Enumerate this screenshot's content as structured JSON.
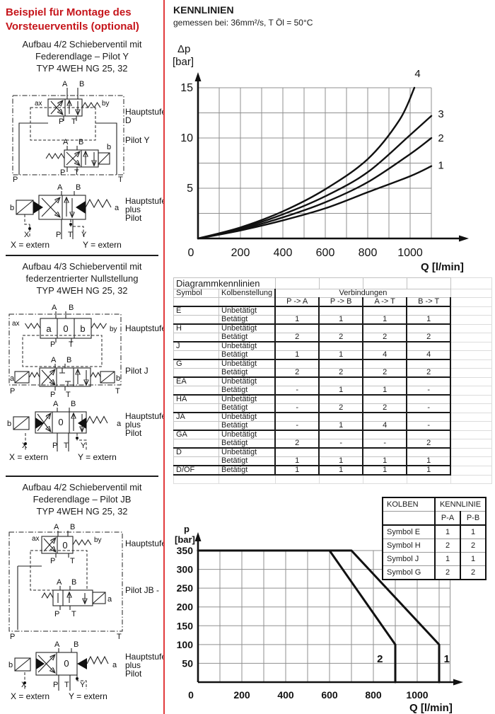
{
  "page": {
    "bg": "#ffffff",
    "divider_color": "#e23a3c",
    "accent_red": "#c6151b",
    "ink": "#1a1a1a",
    "grid_color": "#8f8f8f"
  },
  "left": {
    "title": "Beispiel für Montage des Vorsteuerventils (optional)",
    "s1_heading": [
      "Aufbau 4/2 Schieberventil mit",
      "Federendlage – Pilot Y",
      "TYP 4WEH NG 25, 32"
    ],
    "s2_heading": [
      "Aufbau 4/3 Schieberventil mit",
      "federzentrierter Nullstellung",
      "TYP 4WEH NG 25, 32"
    ],
    "s3_heading": [
      "Aufbau 4/2 Schieberventil mit",
      "Federendlage – Pilot JB",
      "TYP 4WEH NG 25, 32"
    ]
  },
  "ports": {
    "A": "A",
    "B": "B",
    "P": "P",
    "T": "T",
    "X": "X",
    "Y": "Y",
    "a": "a",
    "b": "b",
    "zero": "0",
    "ax": "ax",
    "by": "by"
  },
  "labels": {
    "haupt": "Hauptstufe",
    "hauptD": "D",
    "pilotY": "Pilot Y",
    "pilotJ": "Pilot J",
    "pilotJB": "Pilot JB -",
    "plus": "plus",
    "pilot": "Pilot",
    "xext": "X = extern",
    "yext": "Y = extern"
  },
  "kennlinien": {
    "title": "KENNLINIEN",
    "subtitle": "gemessen bei: 36mm²/s, T Öl = 50°C"
  },
  "chart_data": [
    {
      "type": "line",
      "title": "KENNLINIEN",
      "subtitle": "gemessen bei: 36mm²/s, T Öl = 50°C",
      "xlabel": "Q [l/min]",
      "ylabel1": "Δp",
      "ylabel2": "[bar]",
      "xlim": [
        0,
        1100
      ],
      "ylim": [
        0,
        15
      ],
      "xticks": [
        0,
        200,
        400,
        600,
        800,
        1000
      ],
      "yticks": [
        5,
        10,
        15
      ],
      "grid_x_step": 100,
      "grid_y_step": 2.5,
      "grid": true,
      "series": [
        {
          "name": "1",
          "points": [
            [
              0,
              0
            ],
            [
              200,
              0.8
            ],
            [
              400,
              1.8
            ],
            [
              600,
              3.0
            ],
            [
              800,
              4.6
            ],
            [
              1000,
              6.2
            ],
            [
              1100,
              7.2
            ]
          ]
        },
        {
          "name": "2",
          "points": [
            [
              0,
              0
            ],
            [
              200,
              0.9
            ],
            [
              400,
              2.1
            ],
            [
              600,
              3.6
            ],
            [
              800,
              5.6
            ],
            [
              1000,
              8.4
            ],
            [
              1100,
              10.0
            ]
          ]
        },
        {
          "name": "3",
          "points": [
            [
              0,
              0
            ],
            [
              200,
              1.0
            ],
            [
              400,
              2.4
            ],
            [
              600,
              4.2
            ],
            [
              800,
              6.6
            ],
            [
              1000,
              10.3
            ],
            [
              1100,
              12.2
            ]
          ]
        },
        {
          "name": "4",
          "points": [
            [
              0,
              0
            ],
            [
              200,
              1.1
            ],
            [
              400,
              2.7
            ],
            [
              600,
              4.9
            ],
            [
              800,
              7.9
            ],
            [
              950,
              11.8
            ],
            [
              1020,
              15.0
            ]
          ]
        }
      ],
      "series_labels": [
        {
          "text": "4",
          "x": 1035,
          "y": 16.4
        },
        {
          "text": "3",
          "x": 1145,
          "y": 12.4
        },
        {
          "text": "2",
          "x": 1145,
          "y": 10.0
        },
        {
          "text": "1",
          "x": 1145,
          "y": 7.3
        }
      ]
    },
    {
      "type": "line",
      "xlabel": "Q [l/min]",
      "ylabel1": "p",
      "ylabel2": "[bar]",
      "xlim": [
        0,
        1150
      ],
      "ylim": [
        0,
        350
      ],
      "xticks": [
        0,
        200,
        400,
        600,
        800,
        1000
      ],
      "yticks": [
        50,
        100,
        150,
        200,
        250,
        300,
        350
      ],
      "grid_x_step": 100,
      "grid_y_step": 50,
      "grid": true,
      "series": [
        {
          "name": "1",
          "points": [
            [
              0,
              350
            ],
            [
              700,
              350
            ],
            [
              1100,
              100
            ],
            [
              1100,
              0
            ]
          ]
        },
        {
          "name": "2",
          "points": [
            [
              0,
              350
            ],
            [
              600,
              350
            ],
            [
              900,
              100
            ],
            [
              900,
              0
            ]
          ]
        }
      ],
      "series_labels": [
        {
          "text": "2",
          "x": 830,
          "y": 62
        },
        {
          "text": "1",
          "x": 1135,
          "y": 62
        }
      ]
    }
  ],
  "table1": {
    "title": "Diagrammkennlinien",
    "col_symbol": "Symbol",
    "col_kolben": "Kolbenstellung",
    "col_verb": "Verbindungen",
    "value_cols": [
      "P -> A",
      "P -> B",
      "A -> T",
      "B -> T"
    ],
    "groups": [
      {
        "symbol": "E",
        "rows": [
          {
            "state": "Unbetätigt",
            "vals": [
              "",
              "",
              "",
              ""
            ]
          },
          {
            "state": "Betätigt",
            "vals": [
              "1",
              "1",
              "1",
              "1"
            ]
          }
        ]
      },
      {
        "symbol": "H",
        "rows": [
          {
            "state": "Unbetätigt",
            "vals": [
              "",
              "",
              "",
              ""
            ]
          },
          {
            "state": "Betätigt",
            "vals": [
              "2",
              "2",
              "2",
              "2"
            ]
          }
        ]
      },
      {
        "symbol": "J",
        "rows": [
          {
            "state": "Unbetätigt",
            "vals": [
              "",
              "",
              "",
              ""
            ]
          },
          {
            "state": "Betätigt",
            "vals": [
              "1",
              "1",
              "4",
              "4"
            ]
          }
        ]
      },
      {
        "symbol": "G",
        "rows": [
          {
            "state": "Unbetätigt",
            "vals": [
              "",
              "",
              "",
              ""
            ]
          },
          {
            "state": "Betätigt",
            "vals": [
              "2",
              "2",
              "2",
              "2"
            ]
          }
        ]
      },
      {
        "symbol": "EA",
        "rows": [
          {
            "state": "Unbetätigt",
            "vals": [
              "",
              "",
              "",
              ""
            ]
          },
          {
            "state": "Betätigt",
            "vals": [
              "-",
              "1",
              "1",
              "-"
            ]
          }
        ]
      },
      {
        "symbol": "HA",
        "rows": [
          {
            "state": "Unbetätigt",
            "vals": [
              "",
              "",
              "",
              ""
            ]
          },
          {
            "state": "Betätigt",
            "vals": [
              "-",
              "2",
              "2",
              "-"
            ]
          }
        ]
      },
      {
        "symbol": "JA",
        "rows": [
          {
            "state": "Unbetätigt",
            "vals": [
              "",
              "",
              "",
              ""
            ]
          },
          {
            "state": "Betätigt",
            "vals": [
              "-",
              "1",
              "4",
              "-"
            ]
          }
        ]
      },
      {
        "symbol": "GA",
        "rows": [
          {
            "state": "Unbetätigt",
            "vals": [
              "",
              "",
              "",
              ""
            ]
          },
          {
            "state": "Betätigt",
            "vals": [
              "2",
              "-",
              "-",
              "2"
            ]
          }
        ]
      },
      {
        "symbol": "D",
        "rows": [
          {
            "state": "Unbetätigt",
            "vals": [
              "",
              "",
              "",
              ""
            ]
          },
          {
            "state": "Betätigt",
            "vals": [
              "1",
              "1",
              "1",
              "1"
            ]
          }
        ]
      },
      {
        "symbol": "D/OF",
        "rows": [
          {
            "state": "Betätigt",
            "vals": [
              "1",
              "1",
              "1",
              "1"
            ]
          }
        ]
      }
    ]
  },
  "table2": {
    "col1": "KOLBEN",
    "col2": "KENNLINIE",
    "sub": [
      "P-A",
      "P-B"
    ],
    "rows": [
      {
        "label": "Symbol E",
        "vals": [
          "1",
          "1"
        ]
      },
      {
        "label": "Symbol H",
        "vals": [
          "2",
          "2"
        ]
      },
      {
        "label": "Symbol J",
        "vals": [
          "1",
          "1"
        ]
      },
      {
        "label": "Symbol G",
        "vals": [
          "2",
          "2"
        ]
      }
    ]
  }
}
